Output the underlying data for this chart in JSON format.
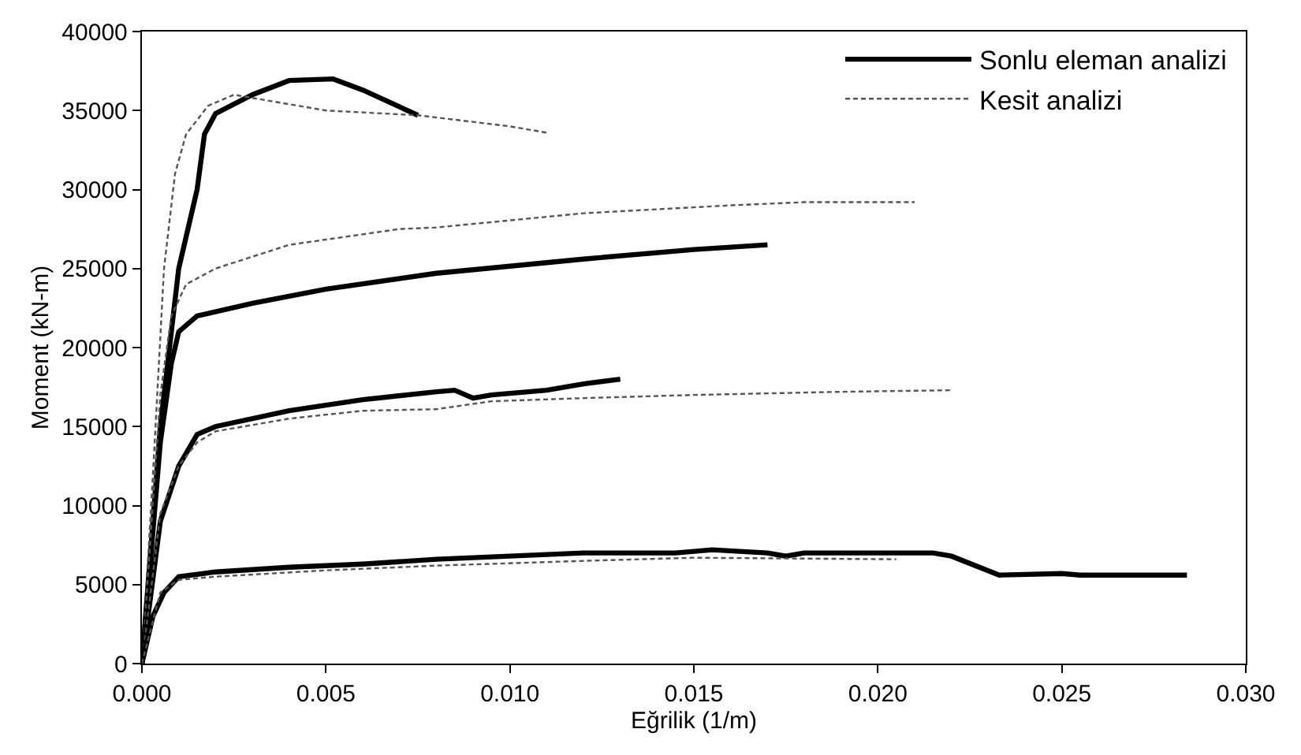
{
  "chart_data": {
    "type": "line",
    "xlabel": "Eğrilik (1/m)",
    "ylabel": "Moment (kN-m)",
    "xlim": [
      0,
      0.03
    ],
    "ylim": [
      0,
      40000
    ],
    "xticks": [
      {
        "value": 0,
        "label": "0.000"
      },
      {
        "value": 0.005,
        "label": "0.005"
      },
      {
        "value": 0.01,
        "label": "0.010"
      },
      {
        "value": 0.015,
        "label": "0.015"
      },
      {
        "value": 0.02,
        "label": "0.020"
      },
      {
        "value": 0.025,
        "label": "0.025"
      },
      {
        "value": 0.03,
        "label": "0.030"
      }
    ],
    "yticks": [
      0,
      5000,
      10000,
      15000,
      20000,
      25000,
      30000,
      35000,
      40000
    ],
    "grid": false,
    "legend": "top right",
    "marker": "none",
    "series": [
      {
        "name": "Sonlu eleman analizi",
        "color": "#000000",
        "line_style": "solid",
        "x": [
          0,
          0.0005,
          0.001,
          0.0015,
          0.0017,
          0.002,
          0.003,
          0.004,
          0.0052,
          0.006,
          0.0075
        ],
        "values": [
          0,
          15000,
          25000,
          30000,
          33500,
          34800,
          36000,
          36900,
          37000,
          36300,
          34700
        ]
      },
      {
        "name": "Kesit analizi",
        "color": "#555555",
        "line_style": "dashed",
        "x": [
          0,
          0.0003,
          0.0006,
          0.0009,
          0.0012,
          0.0018,
          0.0025,
          0.003,
          0.005,
          0.0075,
          0.01,
          0.011
        ],
        "values": [
          0,
          12000,
          25000,
          31000,
          33500,
          35300,
          36000,
          35800,
          35000,
          34700,
          34000,
          33600
        ]
      },
      {
        "color": "#000000",
        "line_style": "solid",
        "x": [
          0,
          0.0005,
          0.0008,
          0.001,
          0.0015,
          0.003,
          0.005,
          0.008,
          0.012,
          0.015,
          0.017
        ],
        "values": [
          0,
          14000,
          19000,
          21000,
          22000,
          22800,
          23700,
          24700,
          25600,
          26200,
          26500
        ]
      },
      {
        "color": "#555555",
        "line_style": "dashed",
        "x": [
          0,
          0.0005,
          0.0008,
          0.0012,
          0.002,
          0.004,
          0.007,
          0.008,
          0.012,
          0.016,
          0.018,
          0.021
        ],
        "values": [
          0,
          17000,
          22000,
          24000,
          25000,
          26500,
          27500,
          27600,
          28500,
          29000,
          29200,
          29200
        ]
      },
      {
        "color": "#000000",
        "line_style": "solid",
        "x": [
          0,
          0.0005,
          0.001,
          0.0015,
          0.002,
          0.004,
          0.006,
          0.008,
          0.0085,
          0.009,
          0.0095,
          0.011,
          0.012,
          0.013
        ],
        "values": [
          0,
          9000,
          12500,
          14500,
          15000,
          16000,
          16700,
          17200,
          17300,
          16800,
          17000,
          17300,
          17700,
          18000
        ]
      },
      {
        "color": "#555555",
        "line_style": "dashed",
        "x": [
          0,
          0.0005,
          0.001,
          0.0015,
          0.002,
          0.004,
          0.006,
          0.008,
          0.0095,
          0.012,
          0.015,
          0.019,
          0.022
        ],
        "values": [
          0,
          9500,
          12500,
          14000,
          14700,
          15500,
          16000,
          16100,
          16600,
          16800,
          17000,
          17200,
          17300
        ]
      },
      {
        "color": "#000000",
        "line_style": "solid",
        "x": [
          0,
          0.0003,
          0.0006,
          0.001,
          0.002,
          0.004,
          0.006,
          0.008,
          0.01,
          0.012,
          0.0145,
          0.0155,
          0.017,
          0.0175,
          0.018,
          0.0215,
          0.022,
          0.0233,
          0.025,
          0.0255,
          0.0284
        ],
        "values": [
          0,
          3000,
          4500,
          5500,
          5800,
          6100,
          6300,
          6600,
          6800,
          7000,
          7000,
          7200,
          7000,
          6800,
          7000,
          7000,
          6800,
          5600,
          5700,
          5600,
          5600
        ]
      },
      {
        "color": "#555555",
        "line_style": "dashed",
        "x": [
          0,
          0.0005,
          0.001,
          0.002,
          0.005,
          0.008,
          0.012,
          0.015,
          0.0205
        ],
        "values": [
          0,
          4500,
          5300,
          5500,
          5900,
          6200,
          6500,
          6700,
          6600
        ]
      }
    ]
  }
}
